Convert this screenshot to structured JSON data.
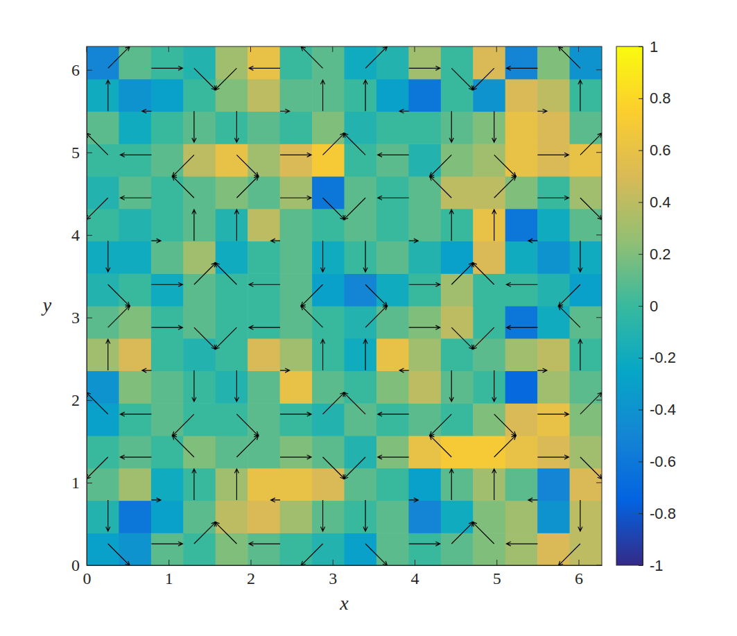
{
  "chart_data": {
    "type": "heatmap",
    "xlabel": "x",
    "ylabel": "y",
    "xlim": [
      0,
      6.2832
    ],
    "ylim": [
      0,
      6.2832
    ],
    "xticks": [
      0,
      1,
      2,
      3,
      4,
      5,
      6
    ],
    "yticks": [
      0,
      1,
      2,
      3,
      4,
      5,
      6
    ],
    "cells": [
      [
        -0.3,
        -0.4,
        0.1,
        0.0,
        0.2,
        0.1,
        0.0,
        -0.1,
        -0.3,
        0.1,
        0.0,
        0.1,
        0.2,
        0.3,
        0.5,
        0.4
      ],
      [
        -0.1,
        -0.6,
        -0.3,
        0.1,
        0.4,
        0.5,
        0.3,
        0.1,
        0.0,
        0.1,
        -0.5,
        -0.2,
        0.2,
        0.3,
        -0.4,
        0.4
      ],
      [
        0.1,
        0.3,
        -0.2,
        0.0,
        0.3,
        0.6,
        0.6,
        0.5,
        0.1,
        0.0,
        -0.3,
        0.1,
        0.3,
        0.1,
        -0.5,
        0.5
      ],
      [
        0.0,
        0.1,
        0.0,
        0.2,
        0.1,
        0.1,
        0.2,
        0.1,
        -0.1,
        0.2,
        0.6,
        0.7,
        0.7,
        0.6,
        0.5,
        0.3
      ],
      [
        -0.3,
        0.0,
        0.1,
        0.0,
        0.0,
        0.1,
        0.0,
        -0.1,
        0.1,
        0.0,
        0.1,
        0.0,
        0.2,
        0.5,
        0.6,
        0.2
      ],
      [
        -0.4,
        0.2,
        0.1,
        0.0,
        -0.1,
        0.1,
        0.6,
        0.1,
        0.0,
        0.2,
        0.4,
        0.1,
        0.0,
        -0.7,
        0.3,
        0.1
      ],
      [
        0.3,
        0.5,
        0.0,
        -0.1,
        0.0,
        0.5,
        0.3,
        0.0,
        -0.2,
        0.6,
        0.3,
        0.0,
        0.1,
        0.3,
        0.4,
        0.0
      ],
      [
        0.1,
        0.2,
        0.0,
        0.1,
        0.0,
        0.0,
        0.1,
        0.0,
        -0.1,
        0.1,
        0.2,
        0.4,
        0.0,
        -0.6,
        -0.2,
        0.1
      ],
      [
        -0.1,
        0.0,
        -0.2,
        0.1,
        0.0,
        0.0,
        0.1,
        -0.3,
        -0.5,
        -0.2,
        0.0,
        0.3,
        0.0,
        0.0,
        -0.1,
        -0.3
      ],
      [
        -0.2,
        -0.2,
        0.1,
        0.3,
        -0.2,
        0.0,
        0.1,
        -0.2,
        0.0,
        0.1,
        -0.1,
        -0.3,
        0.5,
        -0.2,
        -0.4,
        -0.2
      ],
      [
        0.0,
        -0.1,
        0.0,
        0.1,
        -0.1,
        0.4,
        0.1,
        0.0,
        0.1,
        0.0,
        0.1,
        0.0,
        0.6,
        -0.6,
        -0.2,
        0.1
      ],
      [
        -0.1,
        0.1,
        0.0,
        0.1,
        0.2,
        0.1,
        0.3,
        -0.6,
        0.1,
        0.0,
        0.1,
        0.4,
        0.4,
        0.2,
        0.0,
        0.3
      ],
      [
        0.0,
        0.0,
        0.1,
        0.4,
        0.6,
        0.3,
        0.5,
        0.7,
        0.0,
        0.1,
        -0.1,
        0.2,
        0.3,
        0.6,
        0.5,
        0.6
      ],
      [
        0.1,
        -0.2,
        0.0,
        0.1,
        0.0,
        0.1,
        0.0,
        0.2,
        -0.1,
        0.0,
        0.0,
        0.1,
        0.2,
        0.6,
        0.5,
        0.1
      ],
      [
        -0.2,
        -0.4,
        -0.3,
        0.0,
        0.2,
        0.4,
        0.1,
        0.1,
        0.0,
        -0.3,
        -0.6,
        0.0,
        -0.4,
        0.5,
        0.4,
        0.0
      ],
      [
        -0.5,
        0.1,
        0.0,
        -0.1,
        0.3,
        0.6,
        0.0,
        0.1,
        -0.2,
        -0.1,
        0.3,
        0.0,
        0.5,
        -0.5,
        0.2,
        -0.4
      ]
    ],
    "colorbar": {
      "range": [
        -1,
        1
      ],
      "ticks": [
        -1,
        -0.8,
        -0.6,
        -0.4,
        -0.2,
        0,
        0.2,
        0.4,
        0.6,
        0.8,
        1
      ]
    },
    "vectors": {
      "x": [
        0.26,
        0.79,
        1.31,
        1.83,
        2.36,
        2.88,
        3.4,
        3.93,
        4.45,
        4.97,
        5.5,
        6.02
      ],
      "y": [
        0.26,
        0.79,
        1.31,
        1.83,
        2.36,
        2.88,
        3.4,
        3.93,
        4.45,
        4.97,
        5.5,
        6.02
      ],
      "u": [
        [
          0.7,
          1,
          0.7,
          -0.7,
          -1,
          -0.7,
          0.7,
          1,
          0.7,
          -0.7,
          -1,
          -0.7
        ],
        [
          0,
          0.3,
          0,
          0,
          -0.3,
          0,
          0,
          0.3,
          0,
          0,
          -0.3,
          0
        ],
        [
          -0.7,
          -1,
          -0.7,
          0.7,
          1,
          0.7,
          -0.7,
          -1,
          -0.7,
          0.7,
          1,
          0.7
        ],
        [
          -0.7,
          -1,
          -0.7,
          0.7,
          1,
          0.7,
          -0.7,
          -1,
          -0.7,
          0.7,
          1,
          0.7
        ],
        [
          0,
          -0.3,
          0,
          0,
          0.3,
          0,
          0,
          -0.3,
          0,
          0,
          0.3,
          0
        ],
        [
          0.7,
          1,
          0.7,
          -0.7,
          -1,
          -0.7,
          0.7,
          1,
          0.7,
          -0.7,
          -1,
          -0.7
        ],
        [
          0.7,
          1,
          0.7,
          -0.7,
          -1,
          -0.7,
          0.7,
          1,
          0.7,
          -0.7,
          -1,
          -0.7
        ],
        [
          0,
          0.3,
          0,
          0,
          -0.3,
          0,
          0,
          0.3,
          0,
          0,
          -0.3,
          0
        ],
        [
          -0.7,
          -1,
          -0.7,
          0.7,
          1,
          0.7,
          -0.7,
          -1,
          -0.7,
          0.7,
          1,
          0.7
        ],
        [
          -0.7,
          -1,
          -0.7,
          0.7,
          1,
          0.7,
          -0.7,
          -1,
          -0.7,
          0.7,
          1,
          0.7
        ],
        [
          0,
          -0.3,
          0,
          0,
          0.3,
          0,
          0,
          -0.3,
          0,
          0,
          0.3,
          0
        ],
        [
          0.7,
          1,
          0.7,
          -0.7,
          -1,
          -0.7,
          0.7,
          1,
          0.7,
          -0.7,
          -1,
          -0.7
        ]
      ],
      "v": [
        [
          -0.7,
          0,
          0.7,
          0.7,
          0,
          -0.7,
          -0.7,
          0,
          0.7,
          0.7,
          0,
          -0.7
        ],
        [
          -1,
          0,
          1,
          1,
          0,
          -1,
          -1,
          0,
          1,
          1,
          0,
          -1
        ],
        [
          -0.7,
          0,
          0.7,
          0.7,
          0,
          -0.7,
          -0.7,
          0,
          0.7,
          0.7,
          0,
          -0.7
        ],
        [
          0.7,
          0,
          -0.7,
          -0.7,
          0,
          0.7,
          0.7,
          0,
          -0.7,
          -0.7,
          0,
          0.7
        ],
        [
          1,
          0,
          -1,
          -1,
          0,
          1,
          1,
          0,
          -1,
          -1,
          0,
          1
        ],
        [
          0.7,
          0,
          -0.7,
          -0.7,
          0,
          0.7,
          0.7,
          0,
          -0.7,
          -0.7,
          0,
          0.7
        ],
        [
          -0.7,
          0,
          0.7,
          0.7,
          0,
          -0.7,
          -0.7,
          0,
          0.7,
          0.7,
          0,
          -0.7
        ],
        [
          -1,
          0,
          1,
          1,
          0,
          -1,
          -1,
          0,
          1,
          1,
          0,
          -1
        ],
        [
          -0.7,
          0,
          0.7,
          0.7,
          0,
          -0.7,
          -0.7,
          0,
          0.7,
          0.7,
          0,
          -0.7
        ],
        [
          0.7,
          0,
          -0.7,
          -0.7,
          0,
          0.7,
          0.7,
          0,
          -0.7,
          -0.7,
          0,
          0.7
        ],
        [
          1,
          0,
          -1,
          -1,
          0,
          1,
          1,
          0,
          -1,
          -1,
          0,
          1
        ],
        [
          0.7,
          0,
          -0.7,
          -0.7,
          0,
          0.7,
          0.7,
          0,
          -0.7,
          -0.7,
          0,
          0.7
        ]
      ]
    }
  }
}
